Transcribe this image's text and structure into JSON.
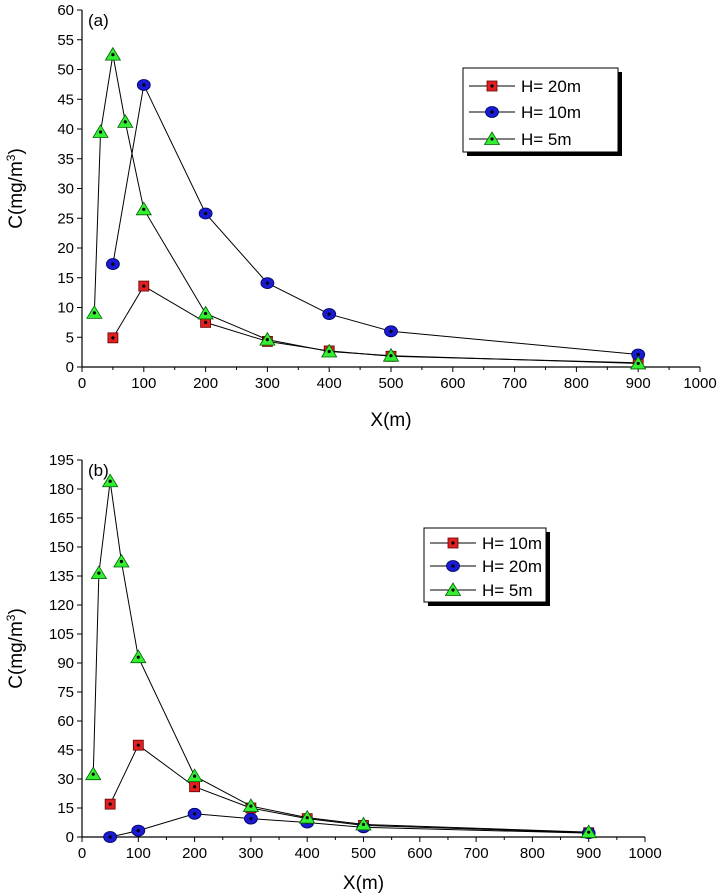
{
  "chart_data": [
    {
      "type": "line",
      "panel_label": "(a)",
      "xlabel": "X(m)",
      "ylabel_main": "C(mg/m",
      "ylabel_sup": "3",
      "ylabel_end": ")",
      "xlim": [
        0,
        1000
      ],
      "ylim": [
        0,
        60
      ],
      "xticks": [
        0,
        100,
        200,
        300,
        400,
        500,
        600,
        700,
        800,
        900,
        1000
      ],
      "yticks": [
        0,
        5,
        10,
        15,
        20,
        25,
        30,
        35,
        40,
        45,
        50,
        55,
        60
      ],
      "grid": false,
      "legend_position": "top-right",
      "series": [
        {
          "name": "H= 20m",
          "marker": "square",
          "color": "#e02020",
          "x": [
            50,
            100,
            200,
            300,
            400,
            500,
            900
          ],
          "y": [
            4.9,
            13.6,
            7.5,
            4.3,
            2.7,
            1.8,
            0.7
          ]
        },
        {
          "name": "H= 10m",
          "marker": "circle",
          "color": "#1a1ad0",
          "x": [
            50,
            100,
            200,
            300,
            400,
            500,
            900
          ],
          "y": [
            17.3,
            47.4,
            25.8,
            14.1,
            8.9,
            6.0,
            2.1
          ]
        },
        {
          "name": "H= 5m",
          "marker": "triangle",
          "color": "#33ee33",
          "x": [
            20,
            30,
            50,
            70,
            100,
            200,
            300,
            400,
            500,
            900
          ],
          "y": [
            9.1,
            39.5,
            52.5,
            41.2,
            26.5,
            9.0,
            4.6,
            2.6,
            1.9,
            0.6
          ]
        }
      ]
    },
    {
      "type": "line",
      "panel_label": "(b)",
      "xlabel": "X(m)",
      "ylabel_main": "C(mg/m",
      "ylabel_sup": "3",
      "ylabel_end": ")",
      "xlim": [
        0,
        1000
      ],
      "ylim": [
        0,
        195
      ],
      "xticks": [
        0,
        100,
        200,
        300,
        400,
        500,
        600,
        700,
        800,
        900,
        1000
      ],
      "yticks": [
        0,
        15,
        30,
        45,
        60,
        75,
        90,
        105,
        120,
        135,
        150,
        165,
        180,
        195
      ],
      "grid": false,
      "legend_position": "top-right",
      "series": [
        {
          "name": "H= 10m",
          "marker": "square",
          "color": "#e02020",
          "x": [
            50,
            100,
            200,
            300,
            400,
            500,
            900
          ],
          "y": [
            17.0,
            47.5,
            26.0,
            15.0,
            9.5,
            6.0,
            2.2
          ]
        },
        {
          "name": "H= 20m",
          "marker": "circle",
          "color": "#1a1ad0",
          "x": [
            50,
            100,
            200,
            300,
            400,
            500,
            900
          ],
          "y": [
            0,
            3.3,
            12.0,
            9.5,
            7.5,
            5.0,
            2.0
          ]
        },
        {
          "name": "H= 5m",
          "marker": "triangle",
          "color": "#33ee33",
          "x": [
            20,
            30,
            50,
            70,
            100,
            200,
            300,
            400,
            500,
            900
          ],
          "y": [
            32.5,
            136.5,
            184.0,
            142.5,
            93.0,
            31.5,
            16.0,
            10.0,
            6.5,
            2.5
          ]
        }
      ]
    }
  ]
}
